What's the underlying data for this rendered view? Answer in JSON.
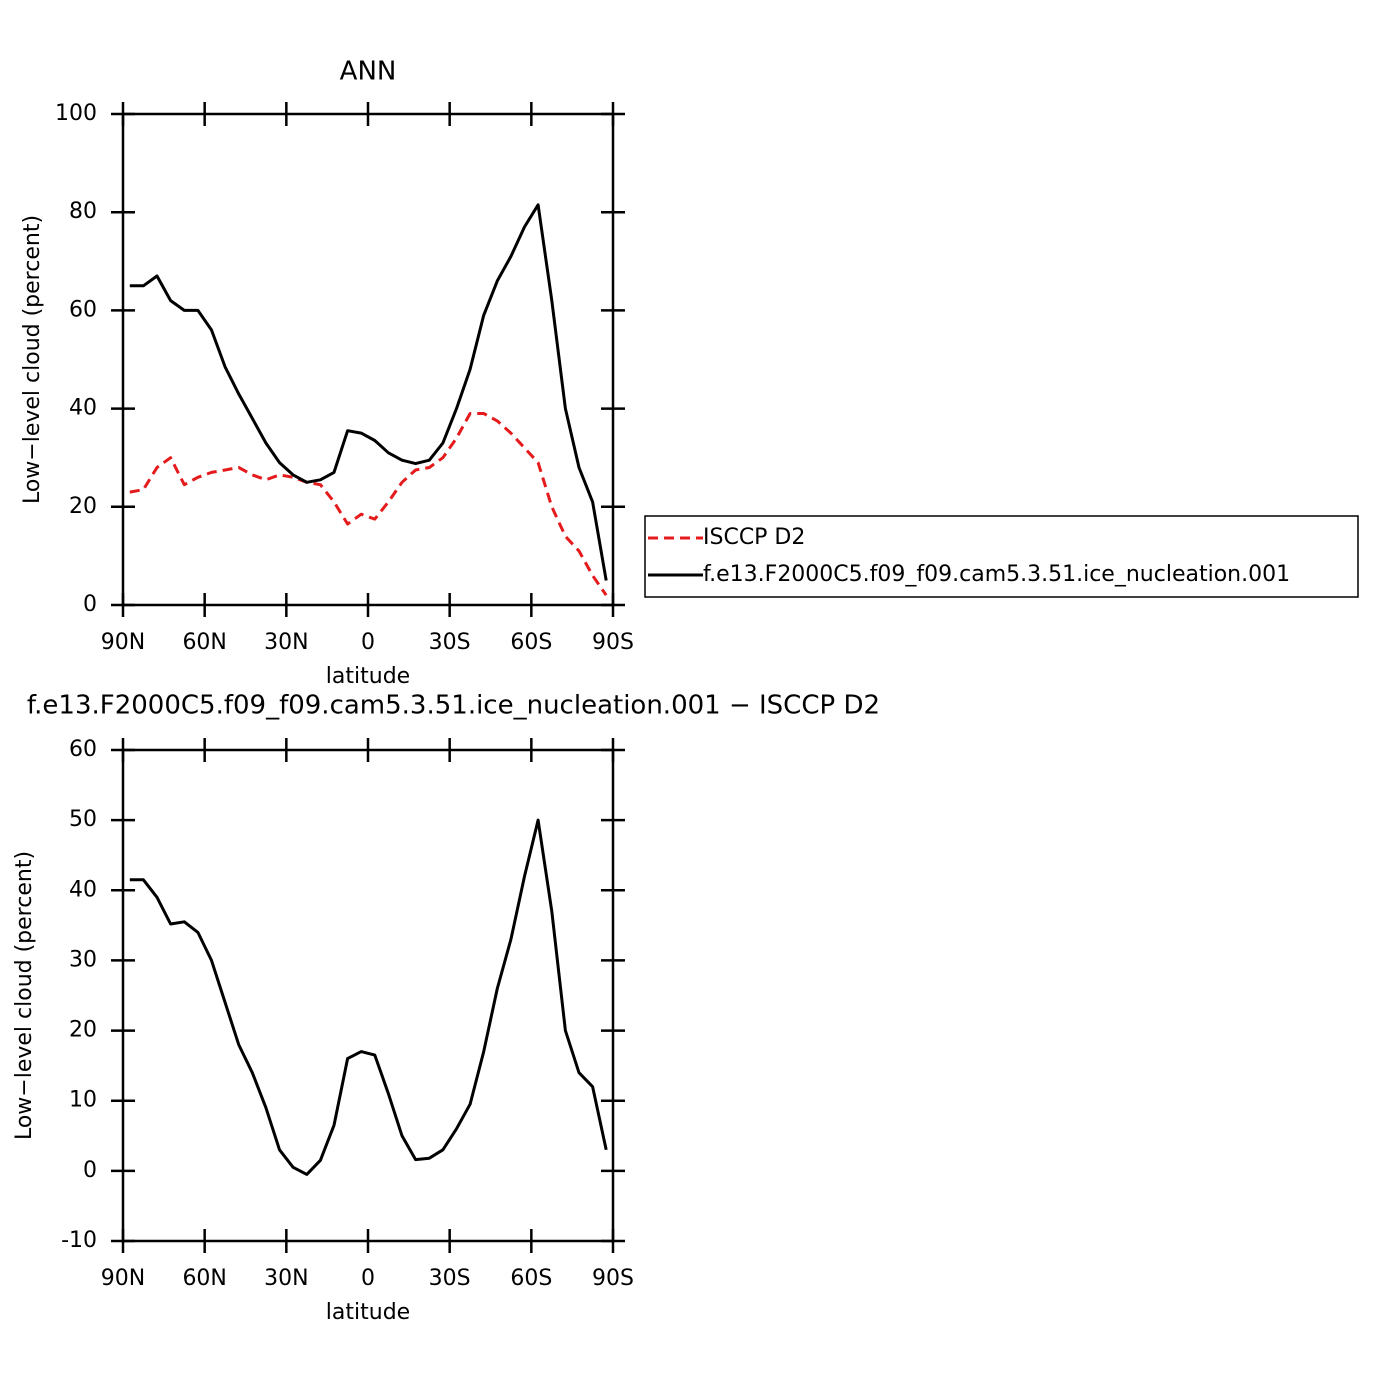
{
  "chart_data": [
    {
      "type": "line",
      "title": "ANN",
      "xlabel": "latitude",
      "ylabel": "Low−level cloud (percent)",
      "x": [
        87.5,
        82.5,
        77.5,
        72.5,
        67.5,
        62.5,
        57.5,
        52.5,
        47.5,
        42.5,
        37.5,
        32.5,
        27.5,
        22.5,
        17.5,
        12.5,
        7.5,
        2.5,
        -2.5,
        -7.5,
        -12.5,
        -17.5,
        -22.5,
        -27.5,
        -32.5,
        -37.5,
        -42.5,
        -47.5,
        -52.5,
        -57.5,
        -62.5,
        -67.5,
        -72.5,
        -77.5,
        -82.5,
        -87.5
      ],
      "series": [
        {
          "name": "ISCCP D2",
          "color": "#e41a1c",
          "dashed": true,
          "values": [
            23,
            23.5,
            28,
            30,
            24.5,
            26,
            27,
            27.5,
            28,
            26.5,
            25.5,
            26.5,
            26,
            25,
            24.5,
            21,
            16.5,
            18.5,
            17.5,
            21,
            25,
            27.5,
            28,
            30,
            34,
            39,
            39,
            37.5,
            35,
            32,
            29,
            20,
            14,
            11,
            6,
            2
          ]
        },
        {
          "name": "f.e13.F2000C5.f09_f09.cam5.3.51.ice_nucleation.001",
          "color": "#000000",
          "dashed": false,
          "values": [
            65,
            65,
            67,
            62,
            60,
            60,
            56,
            48.5,
            43,
            38,
            33,
            29,
            26.5,
            25,
            25.5,
            27,
            35.5,
            35,
            33.5,
            31,
            29.5,
            28.8,
            29.5,
            33,
            40,
            48,
            59,
            66,
            71,
            77,
            81.5,
            62,
            40,
            28,
            21,
            5
          ]
        }
      ],
      "xlim": [
        90,
        -90
      ],
      "xticks": [
        {
          "value": 90,
          "label": "90N"
        },
        {
          "value": 60,
          "label": "60N"
        },
        {
          "value": 30,
          "label": "30N"
        },
        0,
        {
          "value": -30,
          "label": "30S"
        },
        {
          "value": -60,
          "label": "60S"
        },
        {
          "value": -90,
          "label": "90S"
        }
      ],
      "ylim": [
        0,
        100
      ],
      "yticks": [
        0,
        20,
        40,
        60,
        80,
        100
      ],
      "legend": "right"
    },
    {
      "type": "line",
      "title": "f.e13.F2000C5.f09_f09.cam5.3.51.ice_nucleation.001 − ISCCP D2",
      "xlabel": "latitude",
      "ylabel": "Low−level cloud (percent)",
      "x": [
        87.5,
        82.5,
        77.5,
        72.5,
        67.5,
        62.5,
        57.5,
        52.5,
        47.5,
        42.5,
        37.5,
        32.5,
        27.5,
        22.5,
        17.5,
        12.5,
        7.5,
        2.5,
        -2.5,
        -7.5,
        -12.5,
        -17.5,
        -22.5,
        -27.5,
        -32.5,
        -37.5,
        -42.5,
        -47.5,
        -52.5,
        -57.5,
        -62.5,
        -67.5,
        -72.5,
        -77.5,
        -82.5,
        -87.5
      ],
      "series": [
        {
          "color": "#000000",
          "dashed": false,
          "values": [
            41.5,
            41.5,
            39,
            35.2,
            35.5,
            34,
            30,
            24,
            18,
            14,
            9,
            3,
            0.5,
            -0.5,
            1.5,
            6.5,
            16,
            17,
            16.5,
            11,
            5,
            1.6,
            1.8,
            3,
            6,
            9.5,
            17,
            26,
            33,
            42,
            50,
            37,
            20,
            14,
            12,
            3
          ]
        }
      ],
      "xlim": [
        90,
        -90
      ],
      "xticks": [
        {
          "value": 90,
          "label": "90N"
        },
        {
          "value": 60,
          "label": "60N"
        },
        {
          "value": 30,
          "label": "30N"
        },
        0,
        {
          "value": -30,
          "label": "30S"
        },
        {
          "value": -60,
          "label": "60S"
        },
        {
          "value": -90,
          "label": "90S"
        }
      ],
      "ylim": [
        -10,
        60
      ],
      "yticks": [
        -10,
        0,
        10,
        20,
        30,
        40,
        50,
        60
      ]
    }
  ]
}
